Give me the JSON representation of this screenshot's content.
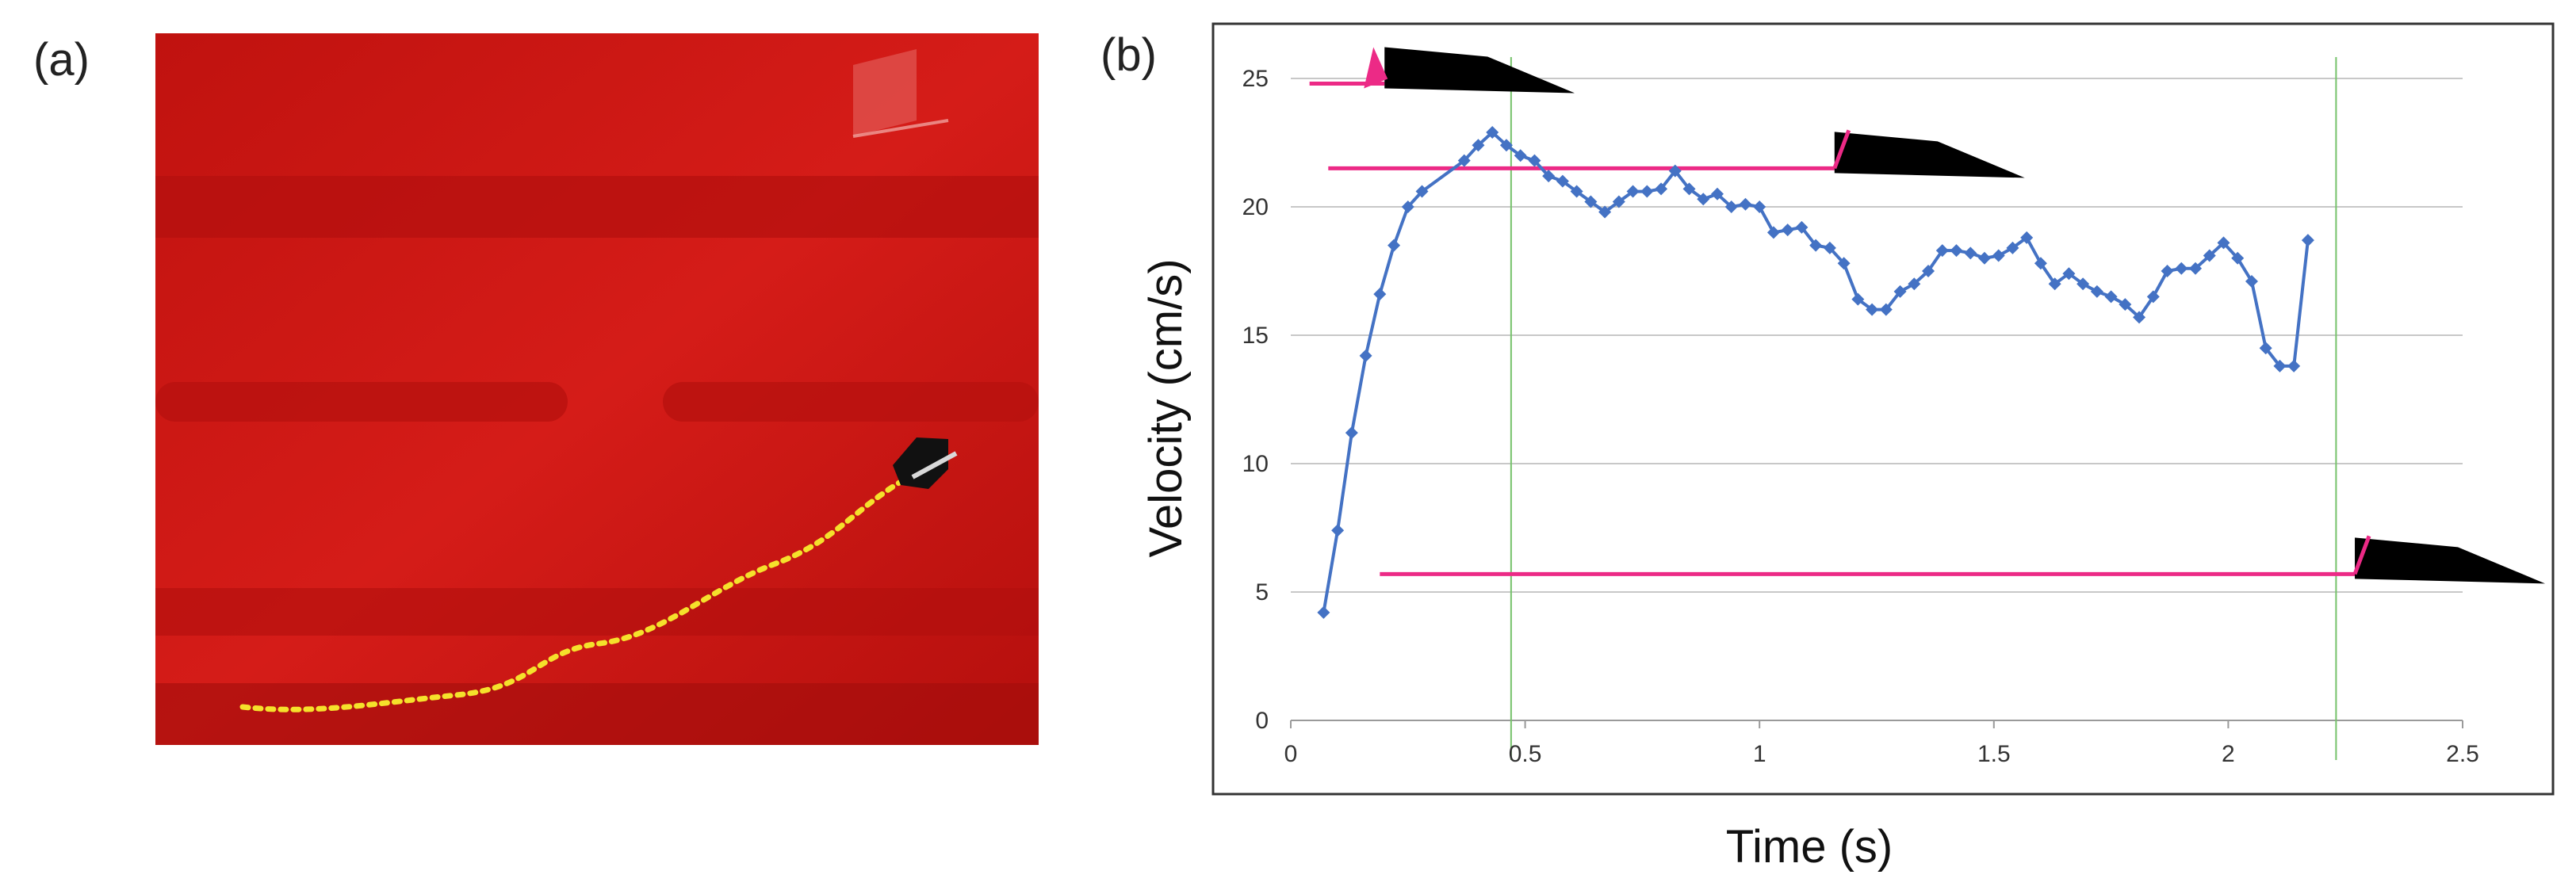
{
  "panels": {
    "a": "(a)",
    "b": "(b)"
  },
  "colors": {
    "series": "#4472c4",
    "pink": "#ec2a86",
    "green": "#76c26b",
    "grid": "#c8c8c8",
    "tank": "#d21a17"
  },
  "chart_data": {
    "type": "line",
    "xlabel": "Time (s)",
    "ylabel": "Velocity (cm/s)",
    "xlim": [
      0,
      2.5
    ],
    "ylim": [
      0,
      25
    ],
    "xticks": [
      "0",
      "0.5",
      "1",
      "1.5",
      "2",
      "2.5"
    ],
    "yticks": [
      "0",
      "5",
      "10",
      "15",
      "20",
      "25"
    ],
    "grid": "horizontal",
    "vertical_markers": [
      0.47,
      2.23
    ],
    "speed_levels": [
      {
        "y": 24.8,
        "x_start": 0.04,
        "x_end": 0.2
      },
      {
        "y": 21.5,
        "x_start": 0.08,
        "x_end": 1.16
      },
      {
        "y": 5.7,
        "x_start": 0.19,
        "x_end": 2.27
      }
    ],
    "series": [
      {
        "x": [
          0.07,
          0.1,
          0.13,
          0.16,
          0.19,
          0.22,
          0.25,
          0.28,
          0.37,
          0.4,
          0.43,
          0.46,
          0.49,
          0.52,
          0.55,
          0.58,
          0.61,
          0.64,
          0.67,
          0.7,
          0.73,
          0.76,
          0.79,
          0.82,
          0.85,
          0.88,
          0.91,
          0.94,
          0.97,
          1.0,
          1.03,
          1.06,
          1.09,
          1.12,
          1.15,
          1.18,
          1.21,
          1.24,
          1.27,
          1.3,
          1.33,
          1.36,
          1.39,
          1.42,
          1.45,
          1.48,
          1.51,
          1.54,
          1.57,
          1.6,
          1.63,
          1.66,
          1.69,
          1.72,
          1.75,
          1.78,
          1.81,
          1.84,
          1.87,
          1.9,
          1.93,
          1.96,
          1.99,
          2.02,
          2.05,
          2.08,
          2.11,
          2.14,
          2.17
        ],
        "values": [
          4.2,
          7.4,
          11.2,
          14.2,
          16.6,
          18.5,
          20.0,
          20.6,
          21.8,
          22.4,
          22.9,
          22.4,
          22.0,
          21.8,
          21.2,
          21.0,
          20.6,
          20.2,
          19.8,
          20.2,
          20.6,
          20.6,
          20.7,
          21.4,
          20.7,
          20.3,
          20.5,
          20.0,
          20.1,
          20.0,
          19.0,
          19.1,
          19.2,
          18.5,
          18.4,
          17.8,
          16.4,
          16.0,
          16.0,
          16.7,
          17.0,
          17.5,
          18.3,
          18.3,
          18.2,
          18.0,
          18.1,
          18.4,
          18.8,
          17.8,
          17.0,
          17.4,
          17.0,
          16.7,
          16.5,
          16.2,
          15.7,
          16.5,
          17.5,
          17.6,
          17.6,
          18.1,
          18.6,
          18.0,
          17.1,
          14.5,
          13.8,
          13.8,
          18.7
        ]
      }
    ]
  }
}
